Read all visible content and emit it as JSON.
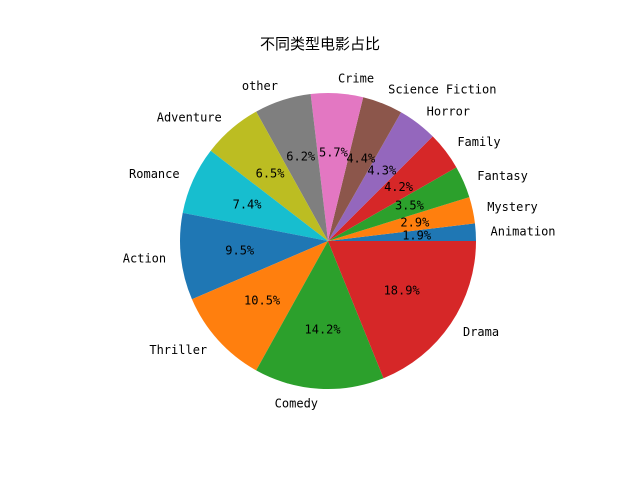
{
  "chart_data": {
    "type": "pie",
    "title": "不同类型电影占比",
    "start_angle_deg": 0,
    "direction": "counterclockwise",
    "slices": [
      {
        "label": "Animation",
        "value": 1.9,
        "pct_label": "1.9%",
        "color": "#1f77b4"
      },
      {
        "label": "Mystery",
        "value": 2.9,
        "pct_label": "2.9%",
        "color": "#ff7f0e"
      },
      {
        "label": "Fantasy",
        "value": 3.5,
        "pct_label": "3.5%",
        "color": "#2ca02c"
      },
      {
        "label": "Family",
        "value": 4.2,
        "pct_label": "4.2%",
        "color": "#d62728"
      },
      {
        "label": "Horror",
        "value": 4.3,
        "pct_label": "4.3%",
        "color": "#9467bd"
      },
      {
        "label": "Science Fiction",
        "value": 4.4,
        "pct_label": "4.4%",
        "color": "#8c564b"
      },
      {
        "label": "Crime",
        "value": 5.7,
        "pct_label": "5.7%",
        "color": "#e377c2"
      },
      {
        "label": "other",
        "value": 6.2,
        "pct_label": "6.2%",
        "color": "#7f7f7f"
      },
      {
        "label": "Adventure",
        "value": 6.5,
        "pct_label": "6.5%",
        "color": "#bcbd22"
      },
      {
        "label": "Romance",
        "value": 7.4,
        "pct_label": "7.4%",
        "color": "#17becf"
      },
      {
        "label": "Action",
        "value": 9.5,
        "pct_label": "9.5%",
        "color": "#1f77b4"
      },
      {
        "label": "Thriller",
        "value": 10.5,
        "pct_label": "10.5%",
        "color": "#ff7f0e"
      },
      {
        "label": "Comedy",
        "value": 14.2,
        "pct_label": "14.2%",
        "color": "#2ca02c"
      },
      {
        "label": "Drama",
        "value": 18.9,
        "pct_label": "18.9%",
        "color": "#d62728"
      }
    ]
  }
}
